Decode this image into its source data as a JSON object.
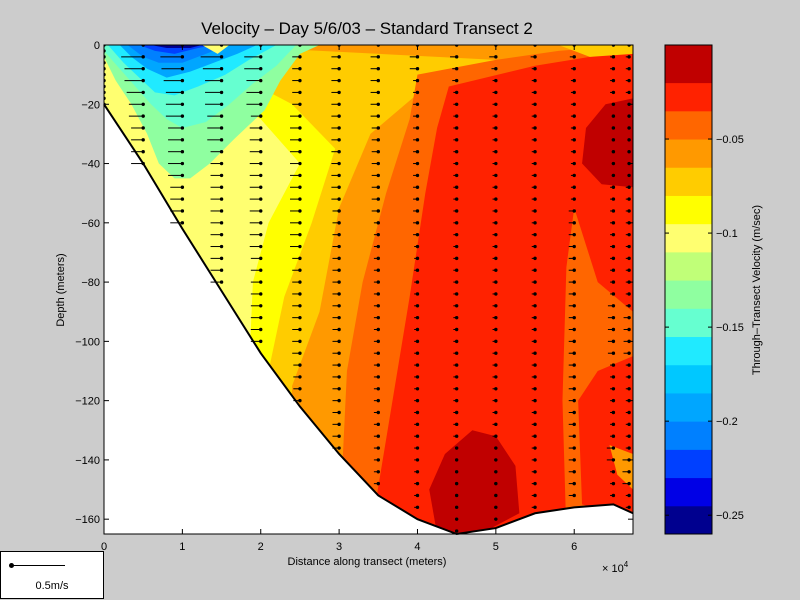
{
  "chart_data": {
    "type": "heatmap",
    "title": "Velocity – Day 5/6/03 – Standard Transect 2",
    "xlabel": "Distance along transect (meters)",
    "x_multiplier_label": "× 10",
    "x_multiplier_exponent": "4",
    "ylabel": "Depth (meters)",
    "colorbar_label": "Through–Transect Velocity (m/sec)",
    "xlim": [
      0,
      67500
    ],
    "ylim": [
      -165,
      0
    ],
    "xticks": [
      {
        "value": 0,
        "label": "0"
      },
      {
        "value": 10000,
        "label": "1"
      },
      {
        "value": 20000,
        "label": "2"
      },
      {
        "value": 30000,
        "label": "3"
      },
      {
        "value": 40000,
        "label": "4"
      },
      {
        "value": 50000,
        "label": "5"
      },
      {
        "value": 60000,
        "label": "6"
      }
    ],
    "yticks": [
      0,
      -20,
      -40,
      -60,
      -80,
      -100,
      -120,
      -140,
      -160
    ],
    "colorbar": {
      "min": -0.26,
      "max": 0.0,
      "levels": [
        {
          "from": -0.26,
          "to": -0.245,
          "color": "#00008f"
        },
        {
          "from": -0.245,
          "to": -0.23,
          "color": "#0000e6"
        },
        {
          "from": -0.23,
          "to": -0.215,
          "color": "#0040ff"
        },
        {
          "from": -0.215,
          "to": -0.2,
          "color": "#0080ff"
        },
        {
          "from": -0.2,
          "to": -0.185,
          "color": "#00a6ff"
        },
        {
          "from": -0.185,
          "to": -0.17,
          "color": "#00c8ff"
        },
        {
          "from": -0.17,
          "to": -0.155,
          "color": "#20eaff"
        },
        {
          "from": -0.155,
          "to": -0.14,
          "color": "#66ffd0"
        },
        {
          "from": -0.14,
          "to": -0.125,
          "color": "#8fffa0"
        },
        {
          "from": -0.125,
          "to": -0.11,
          "color": "#c0ff78"
        },
        {
          "from": -0.11,
          "to": -0.095,
          "color": "#ffff70"
        },
        {
          "from": -0.095,
          "to": -0.08,
          "color": "#ffff00"
        },
        {
          "from": -0.08,
          "to": -0.065,
          "color": "#ffcc00"
        },
        {
          "from": -0.065,
          "to": -0.05,
          "color": "#ff9900"
        },
        {
          "from": -0.05,
          "to": -0.035,
          "color": "#ff6600"
        },
        {
          "from": -0.035,
          "to": -0.02,
          "color": "#ff2200"
        },
        {
          "from": -0.02,
          "to": 0.0,
          "color": "#c00000"
        }
      ],
      "ticks": [
        {
          "value": -0.05,
          "label": "−0.05"
        },
        {
          "value": -0.1,
          "label": "−0.1"
        },
        {
          "value": -0.15,
          "label": "−0.15"
        },
        {
          "value": -0.2,
          "label": "−0.2"
        },
        {
          "value": -0.25,
          "label": "−0.25"
        }
      ]
    },
    "velocity_regions": [
      {
        "velocity": -0.11,
        "points": [
          [
            0,
            0
          ],
          [
            67500,
            0
          ],
          [
            67500,
            -165
          ],
          [
            0,
            -165
          ]
        ]
      },
      {
        "velocity": -0.1,
        "points": [
          [
            1500,
            0
          ],
          [
            67500,
            0
          ],
          [
            67500,
            -165
          ],
          [
            15000,
            -165
          ],
          [
            15000,
            -80
          ],
          [
            14000,
            -55
          ],
          [
            11500,
            -35
          ],
          [
            7500,
            -20
          ],
          [
            3000,
            -10
          ]
        ]
      },
      {
        "velocity": -0.09,
        "points": [
          [
            4000,
            0
          ],
          [
            67500,
            0
          ],
          [
            67500,
            -165
          ],
          [
            18000,
            -165
          ],
          [
            18500,
            -110
          ],
          [
            19000,
            -80
          ],
          [
            21000,
            -60
          ],
          [
            25000,
            -40
          ],
          [
            20000,
            -25
          ],
          [
            12000,
            -13
          ],
          [
            6000,
            -4
          ]
        ]
      },
      {
        "velocity": -0.07,
        "points": [
          [
            8000,
            0
          ],
          [
            67500,
            0
          ],
          [
            67500,
            -165
          ],
          [
            20500,
            -165
          ],
          [
            21000,
            -110
          ],
          [
            23000,
            -85
          ],
          [
            26500,
            -60
          ],
          [
            29500,
            -35
          ],
          [
            24000,
            -20
          ],
          [
            14000,
            -6
          ]
        ]
      },
      {
        "velocity": -0.06,
        "points": [
          [
            13000,
            0
          ],
          [
            67500,
            0
          ],
          [
            67500,
            -165
          ],
          [
            23500,
            -165
          ],
          [
            24000,
            -115
          ],
          [
            27500,
            -90
          ],
          [
            30000,
            -55
          ],
          [
            34000,
            -30
          ],
          [
            42000,
            -12
          ],
          [
            50000,
            -5
          ]
        ]
      },
      {
        "velocity": -0.04,
        "points": [
          [
            40000,
            -10
          ],
          [
            50000,
            -5
          ],
          [
            58000,
            -2
          ],
          [
            67500,
            0
          ],
          [
            67500,
            -165
          ],
          [
            30000,
            -165
          ],
          [
            31000,
            -110
          ],
          [
            33000,
            -80
          ],
          [
            36000,
            -50
          ],
          [
            39000,
            -25
          ]
        ]
      },
      {
        "velocity": -0.03,
        "points": [
          [
            44000,
            -14
          ],
          [
            55000,
            -7
          ],
          [
            62000,
            -4
          ],
          [
            67500,
            -2
          ],
          [
            67500,
            -165
          ],
          [
            34000,
            -165
          ],
          [
            36500,
            -125
          ],
          [
            39000,
            -85
          ],
          [
            41000,
            -50
          ],
          [
            42500,
            -28
          ]
        ]
      },
      {
        "velocity": -0.05,
        "points": [
          [
            60000,
            -55
          ],
          [
            63000,
            -80
          ],
          [
            67500,
            -90
          ],
          [
            67500,
            -105
          ],
          [
            63000,
            -110
          ],
          [
            60500,
            -120
          ],
          [
            61000,
            -155
          ],
          [
            67500,
            -160
          ],
          [
            67500,
            -165
          ],
          [
            59000,
            -165
          ],
          [
            58500,
            -120
          ],
          [
            59000,
            -75
          ]
        ]
      },
      {
        "velocity": -0.06,
        "points": [
          [
            64500,
            -135
          ],
          [
            67500,
            -138
          ],
          [
            67500,
            -150
          ],
          [
            65500,
            -145
          ]
        ]
      },
      {
        "velocity": -0.015,
        "points": [
          [
            61500,
            -28
          ],
          [
            64000,
            -20
          ],
          [
            67500,
            -18
          ],
          [
            67500,
            -48
          ],
          [
            63500,
            -47
          ],
          [
            61000,
            -40
          ]
        ]
      },
      {
        "velocity": -0.015,
        "points": [
          [
            41500,
            -150
          ],
          [
            43500,
            -138
          ],
          [
            47000,
            -130
          ],
          [
            50000,
            -132
          ],
          [
            52500,
            -142
          ],
          [
            53000,
            -158
          ],
          [
            48000,
            -165
          ],
          [
            42500,
            -165
          ]
        ]
      },
      {
        "velocity": -0.13,
        "points": [
          [
            0,
            -4
          ],
          [
            1500,
            -12
          ],
          [
            3500,
            -20
          ],
          [
            5500,
            -30
          ],
          [
            7000,
            -40
          ],
          [
            9000,
            -45
          ],
          [
            11000,
            -45
          ],
          [
            13500,
            -40
          ],
          [
            16500,
            -32
          ],
          [
            20500,
            -22
          ],
          [
            22500,
            -12
          ],
          [
            25000,
            -3
          ],
          [
            27500,
            0
          ],
          [
            0,
            0
          ]
        ]
      },
      {
        "velocity": -0.15,
        "points": [
          [
            0,
            -2
          ],
          [
            2000,
            -8
          ],
          [
            4000,
            -14
          ],
          [
            6000,
            -20
          ],
          [
            8000,
            -25
          ],
          [
            10000,
            -28
          ],
          [
            13000,
            -26
          ],
          [
            16000,
            -20
          ],
          [
            19000,
            -13
          ],
          [
            22000,
            -7
          ],
          [
            24500,
            0
          ],
          [
            0,
            0
          ]
        ]
      },
      {
        "velocity": -0.17,
        "points": [
          [
            500,
            0
          ],
          [
            2500,
            -6
          ],
          [
            4500,
            -11
          ],
          [
            6500,
            -16
          ],
          [
            9000,
            -17
          ],
          [
            12000,
            -14
          ],
          [
            15500,
            -10
          ],
          [
            18500,
            -5
          ],
          [
            22000,
            0
          ]
        ]
      },
      {
        "velocity": -0.19,
        "points": [
          [
            2000,
            0
          ],
          [
            3500,
            -4
          ],
          [
            5500,
            -8
          ],
          [
            8000,
            -11
          ],
          [
            11000,
            -9
          ],
          [
            14000,
            -6
          ],
          [
            17000,
            -3
          ],
          [
            19500,
            0
          ]
        ]
      },
      {
        "velocity": -0.21,
        "points": [
          [
            3000,
            0
          ],
          [
            5000,
            -4
          ],
          [
            7000,
            -6
          ],
          [
            10000,
            -6
          ],
          [
            13000,
            -3
          ],
          [
            16000,
            0
          ]
        ]
      },
      {
        "velocity": -0.23,
        "points": [
          [
            4500,
            0
          ],
          [
            6500,
            -2
          ],
          [
            9000,
            -3
          ],
          [
            12000,
            -1
          ],
          [
            14000,
            0
          ]
        ]
      },
      {
        "velocity": -0.25,
        "points": [
          [
            6000,
            0
          ],
          [
            8000,
            -1
          ],
          [
            11000,
            -1
          ],
          [
            12500,
            0
          ]
        ]
      },
      {
        "velocity": -0.11,
        "points": [
          [
            12500,
            0
          ],
          [
            14500,
            -3
          ],
          [
            16000,
            0
          ]
        ]
      },
      {
        "velocity": -0.08,
        "points": [
          [
            58000,
            0
          ],
          [
            67500,
            0
          ],
          [
            67500,
            -3
          ],
          [
            62000,
            -4
          ]
        ]
      }
    ],
    "bottom_profile": [
      [
        0,
        -20
      ],
      [
        5000,
        -40
      ],
      [
        10000,
        -62
      ],
      [
        15000,
        -83
      ],
      [
        20000,
        -104
      ],
      [
        25000,
        -122
      ],
      [
        30000,
        -138
      ],
      [
        35000,
        -152
      ],
      [
        40000,
        -160
      ],
      [
        45000,
        -165
      ],
      [
        50000,
        -163
      ],
      [
        55000,
        -158
      ],
      [
        60000,
        -156
      ],
      [
        65000,
        -155
      ],
      [
        67500,
        -158
      ]
    ],
    "profile_stations": [
      {
        "x": 0,
        "max_depth": -20,
        "step": 2
      },
      {
        "x": 5000,
        "max_depth": -40,
        "step": 4
      },
      {
        "x": 10000,
        "max_depth": -60,
        "step": 4
      },
      {
        "x": 15000,
        "max_depth": -80,
        "step": 4
      },
      {
        "x": 20000,
        "max_depth": -100,
        "step": 4
      },
      {
        "x": 25000,
        "max_depth": -120,
        "step": 4
      },
      {
        "x": 30000,
        "max_depth": -136,
        "step": 4
      },
      {
        "x": 35000,
        "max_depth": -150,
        "step": 4
      },
      {
        "x": 40000,
        "max_depth": -158,
        "step": 4
      },
      {
        "x": 45000,
        "max_depth": -164,
        "step": 4
      },
      {
        "x": 50000,
        "max_depth": -162,
        "step": 4
      },
      {
        "x": 55000,
        "max_depth": -157,
        "step": 4
      },
      {
        "x": 60000,
        "max_depth": -154,
        "step": 4
      },
      {
        "x": 65000,
        "max_depth": -154,
        "step": 4
      },
      {
        "x": 67000,
        "max_depth": -156,
        "step": 4
      }
    ],
    "arrow_scale_label": "0.5m/s"
  }
}
